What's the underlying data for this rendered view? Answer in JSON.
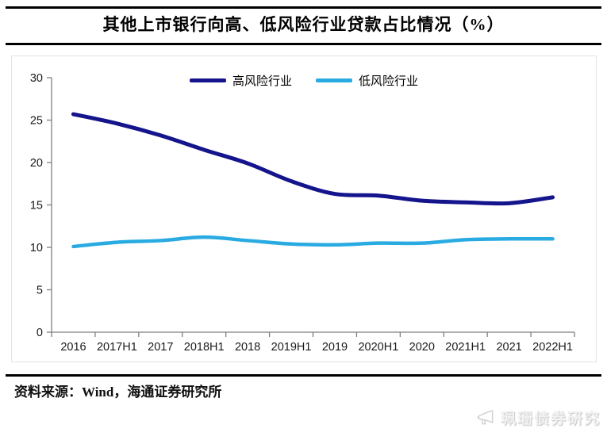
{
  "header": {
    "title": "其他上市银行向高、低风险行业贷款占比情况（%）"
  },
  "chart_data": {
    "type": "line",
    "categories": [
      "2016",
      "2017H1",
      "2017",
      "2018H1",
      "2018",
      "2019H1",
      "2019",
      "2020H1",
      "2020",
      "2021H1",
      "2021",
      "2022H1"
    ],
    "series": [
      {
        "name": "高风险行业",
        "color": "#14148C",
        "values": [
          25.7,
          24.6,
          23.2,
          21.5,
          19.9,
          17.8,
          16.3,
          16.1,
          15.5,
          15.3,
          15.2,
          15.9
        ]
      },
      {
        "name": "低风险行业",
        "color": "#29ABE2",
        "values": [
          10.1,
          10.6,
          10.8,
          11.2,
          10.8,
          10.4,
          10.3,
          10.5,
          10.5,
          10.9,
          11.0,
          11.0
        ]
      }
    ],
    "title": "其他上市银行向高、低风险行业贷款占比情况（%）",
    "xlabel": "",
    "ylabel": "",
    "ylim": [
      0,
      30
    ],
    "yticks": [
      0,
      5,
      10,
      15,
      20,
      25,
      30
    ],
    "grid": false,
    "legend_position": "top-center",
    "axis_color": "#808080",
    "tick_label_color": "#1a1a1a"
  },
  "footer": {
    "source": "资料来源：Wind，海通证券研究所"
  },
  "watermark": {
    "text": "珮珊债券研究",
    "icon": "megaphone-icon"
  }
}
